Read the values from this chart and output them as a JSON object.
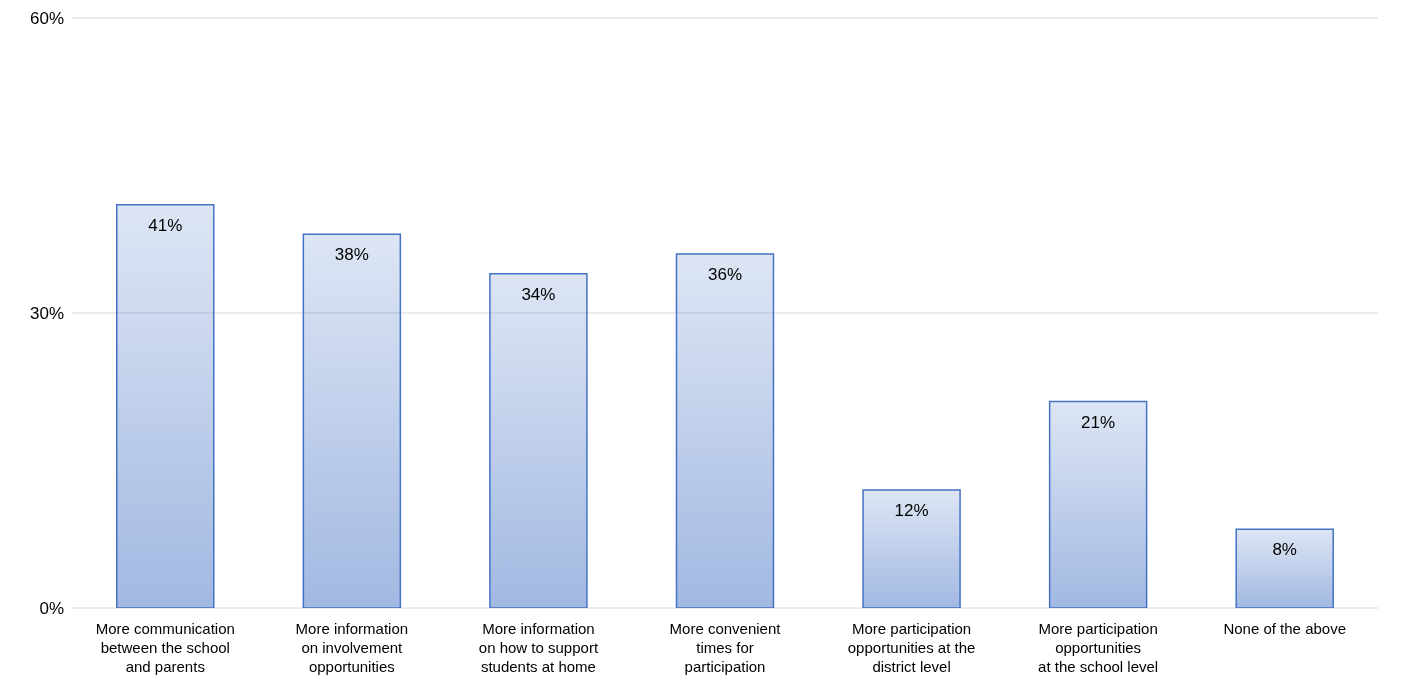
{
  "chart_data": {
    "type": "bar",
    "categories": [
      "More communication\nbetween the school\nand parents",
      "More information\non involvement\nopportunities",
      "More information\non how to support\nstudents at home",
      "More convenient\ntimes for\nparticipation",
      "More participation\nopportunities at the\ndistrict level",
      "More participation\nopportunities\nat the school level",
      "None of the above"
    ],
    "values": [
      41,
      38,
      34,
      36,
      12,
      21,
      8
    ],
    "value_labels": [
      "41%",
      "38%",
      "34%",
      "36%",
      "12%",
      "21%",
      "8%"
    ],
    "color": "#4472c4",
    "ylim": [
      0,
      60
    ],
    "yticks": [
      {
        "value": 0,
        "label": "0%"
      },
      {
        "value": 30,
        "label": "30%"
      },
      {
        "value": 60,
        "label": "60%"
      }
    ],
    "grid": "y"
  }
}
